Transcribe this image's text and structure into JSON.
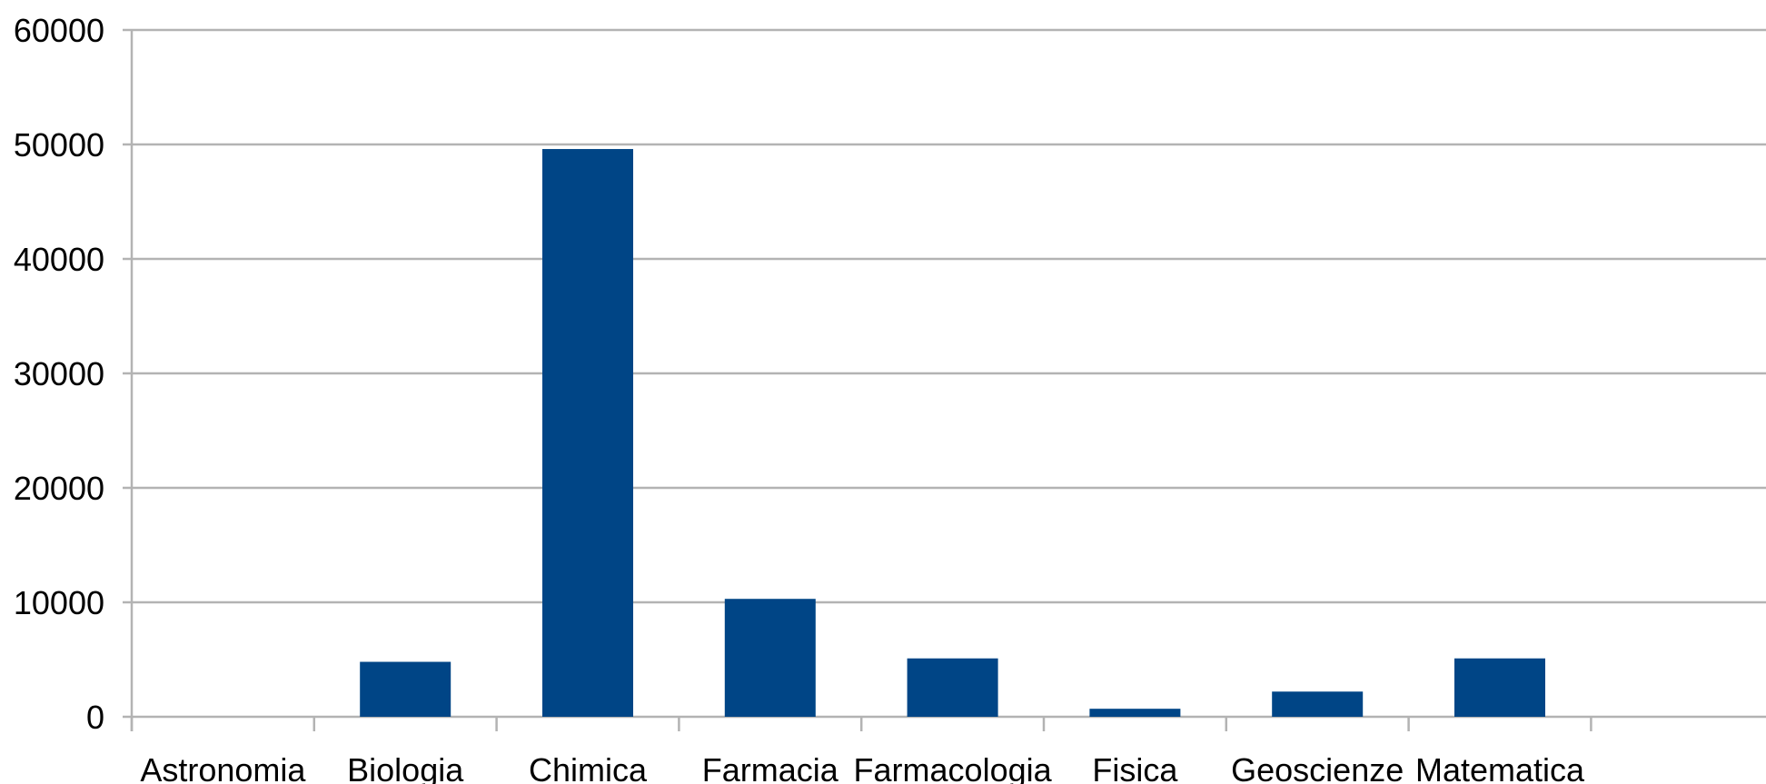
{
  "chart_data": {
    "type": "bar",
    "categories": [
      "Astronomia",
      "Biologia",
      "Chimica",
      "Farmacia",
      "Farmacologia",
      "Fisica",
      "Geoscienze",
      "Matematica",
      ""
    ],
    "values": [
      0,
      4800,
      49600,
      10300,
      5100,
      700,
      2200,
      5100,
      0
    ],
    "ylim": [
      0,
      60000
    ],
    "yticks": [
      0,
      10000,
      20000,
      30000,
      40000,
      50000,
      60000
    ],
    "ytick_labels": [
      "0",
      "10000",
      "20000",
      "30000",
      "40000",
      "50000",
      "60000"
    ],
    "grid": true,
    "legend": "none",
    "colors": {
      "bar": "#004586",
      "grid": "#b3b3b3",
      "axis": "#b3b3b3"
    }
  }
}
